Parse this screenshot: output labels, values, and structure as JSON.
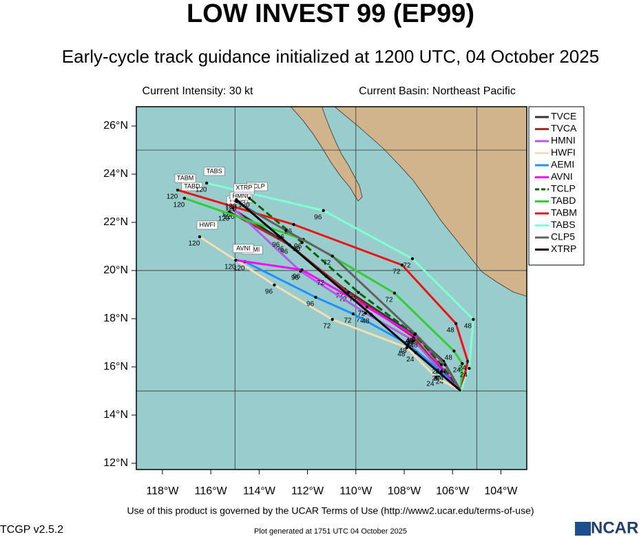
{
  "header": {
    "title": "LOW INVEST 99 (EP99)",
    "subtitle": "Early-cycle track guidance initialized at 1200 UTC, 04 October 2025",
    "intensity": "Current Intensity: 30 kt",
    "basin": "Current Basin: Northeast Pacific"
  },
  "map": {
    "xlim": [
      -119.08,
      -102.93
    ],
    "ylim": [
      11.74,
      26.8
    ],
    "xticks": [
      {
        "value": -118,
        "label": "118°W"
      },
      {
        "value": -116,
        "label": "116°W"
      },
      {
        "value": -114,
        "label": "114°W"
      },
      {
        "value": -112,
        "label": "112°W"
      },
      {
        "value": -110,
        "label": "110°W"
      },
      {
        "value": -108,
        "label": "108°W"
      },
      {
        "value": -106,
        "label": "106°W"
      },
      {
        "value": -104,
        "label": "104°W"
      }
    ],
    "yticks": [
      {
        "value": 12,
        "label": "12°N"
      },
      {
        "value": 14,
        "label": "14°N"
      },
      {
        "value": 16,
        "label": "16°N"
      },
      {
        "value": 18,
        "label": "18°N"
      },
      {
        "value": 20,
        "label": "20°N"
      },
      {
        "value": 22,
        "label": "22°N"
      },
      {
        "value": 24,
        "label": "24°N"
      },
      {
        "value": 26,
        "label": "26°N"
      }
    ],
    "xgrid": [
      -115,
      -110,
      -105
    ],
    "ygrid": [
      15,
      20,
      25
    ],
    "hours": [
      0,
      24,
      48,
      72,
      96,
      120
    ],
    "tracks": [
      {
        "name": "TVCE",
        "color": "#333333",
        "lon": [
          -105.66,
          -106.37,
          -107.51,
          -110.46,
          -112.91,
          -115.03
        ],
        "lat": [
          15.0,
          16.23,
          17.29,
          19.23,
          21.17,
          22.51
        ]
      },
      {
        "name": "TVCA",
        "color": "#a52a2a",
        "lon": [
          -105.66,
          -106.4,
          -107.6,
          -110.31,
          -112.74,
          -115.23
        ],
        "lat": [
          15.0,
          15.8,
          17.23,
          19.09,
          21.06,
          22.43
        ]
      },
      {
        "name": "HMNI",
        "color": "#b55ae8",
        "lon": [
          -105.66,
          -106.31,
          -107.6,
          -109.6,
          -112.29,
          -115.09
        ],
        "lat": [
          15.0,
          15.66,
          17.09,
          18.23,
          19.97,
          22.6
        ]
      },
      {
        "name": "HWFI",
        "color": "#f5deb3",
        "lon": [
          -105.66,
          -106.69,
          -107.89,
          -110.97,
          -113.37,
          -116.46
        ],
        "lat": [
          15.0,
          15.57,
          16.8,
          17.97,
          19.4,
          21.4
        ]
      },
      {
        "name": "AEMI",
        "color": "#1e90ff",
        "lon": [
          -105.66,
          -106.46,
          -107.83,
          -110.11,
          -111.66,
          -114.6
        ],
        "lat": [
          15.0,
          15.8,
          16.94,
          18.2,
          18.89,
          20.37
        ]
      },
      {
        "name": "AVNI",
        "color": "#ff00ff",
        "lon": [
          -105.66,
          -106.31,
          -107.37,
          -109.54,
          -112.23,
          -114.97
        ],
        "lat": [
          15.0,
          15.8,
          17.17,
          18.49,
          20.03,
          20.43
        ]
      },
      {
        "name": "TCLP",
        "color": "#006400",
        "dash": true,
        "lon": [
          -105.66,
          -106.46,
          -107.57,
          -109.89,
          -112.23,
          -114.4
        ],
        "lat": [
          15.0,
          16.09,
          17.34,
          19.09,
          21.17,
          23.0
        ]
      },
      {
        "name": "TABD",
        "color": "#32cd32",
        "lon": [
          -105.66,
          -105.6,
          -105.94,
          -108.4,
          -112.17,
          -117.09
        ],
        "lat": [
          15.0,
          16.14,
          16.66,
          19.06,
          21.29,
          23.0
        ]
      },
      {
        "name": "TABM",
        "color": "#ee1111",
        "lon": [
          -105.66,
          -105.37,
          -105.86,
          -108.09,
          -112.57,
          -117.37
        ],
        "lat": [
          15.0,
          16.23,
          17.8,
          20.23,
          21.91,
          23.34
        ]
      },
      {
        "name": "TABS",
        "color": "#80ffd4",
        "lon": [
          -105.66,
          -105.31,
          -105.14,
          -107.66,
          -111.34,
          -116.17
        ],
        "lat": [
          15.0,
          15.94,
          17.97,
          20.49,
          22.49,
          23.63
        ]
      },
      {
        "name": "CLP5",
        "color": "#606060",
        "lon": [
          -105.66,
          -106.31,
          -107.54,
          -110.97,
          -112.89,
          -114.94
        ],
        "lat": [
          15.0,
          16.09,
          17.37,
          20.6,
          21.66,
          22.86
        ]
      },
      {
        "name": "XTRP",
        "color": "#000000",
        "lon": [
          -105.66,
          -107.52,
          -109.37,
          -111.23,
          -113.08,
          -114.94
        ],
        "lat": [
          15.0,
          16.59,
          18.18,
          19.76,
          21.35,
          22.94
        ]
      }
    ]
  },
  "footer": {
    "terms": "Use of this product is governed by the UCAR Terms of Use (http://www2.ucar.edu/terms-of-use)",
    "version": "TCGP v2.5.2",
    "generated": "Plot generated at 1751 UTC   04 October 2025",
    "logo": "NCAR"
  }
}
